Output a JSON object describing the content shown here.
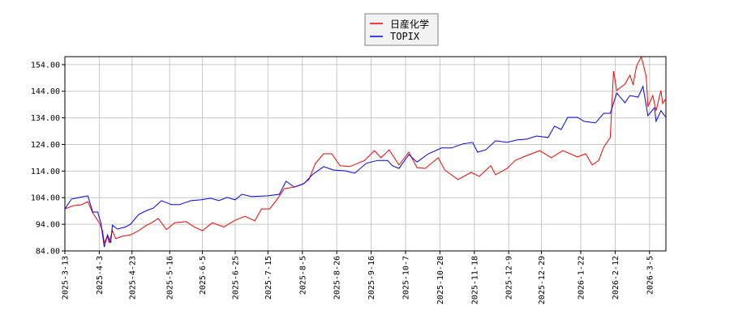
{
  "chart_data": {
    "type": "line",
    "title": "",
    "xlabel": "",
    "ylabel": "",
    "ylim": [
      84,
      157
    ],
    "xlim": [
      "2025-03-13",
      "2026-03-15"
    ],
    "grid": true,
    "legend_placement": "top-center",
    "y_ticks": [
      "84.00",
      "94.00",
      "104.00",
      "114.00",
      "124.00",
      "134.00",
      "144.00",
      "154.00"
    ],
    "x_ticks": [
      "2025-3-13",
      "2025-4-3",
      "2025-4-23",
      "2025-5-16",
      "2025-6-5",
      "2025-6-25",
      "2025-7-15",
      "2025-8-5",
      "2025-8-26",
      "2025-9-16",
      "2025-10-7",
      "2025-10-28",
      "2025-11-18",
      "2025-12-9",
      "2025-12-29",
      "2026-1-22",
      "2026-2-12",
      "2026-3-5"
    ],
    "series": [
      {
        "name": "日産化学",
        "color": "#ff0000",
        "points": [
          [
            "2025-03-13",
            99.8
          ],
          [
            "2025-03-18",
            101
          ],
          [
            "2025-03-23",
            101.3
          ],
          [
            "2025-03-27",
            102.5
          ],
          [
            "2025-03-30",
            98.3
          ],
          [
            "2025-04-03",
            94.6
          ],
          [
            "2025-04-05",
            91.6
          ],
          [
            "2025-04-06",
            87
          ],
          [
            "2025-04-08",
            89.5
          ],
          [
            "2025-04-09",
            87
          ],
          [
            "2025-04-11",
            91.6
          ],
          [
            "2025-04-13",
            88.6
          ],
          [
            "2025-04-17",
            89.5
          ],
          [
            "2025-04-22",
            90
          ],
          [
            "2025-04-27",
            91.6
          ],
          [
            "2025-05-02",
            93.7
          ],
          [
            "2025-05-05",
            94.6
          ],
          [
            "2025-05-09",
            96.2
          ],
          [
            "2025-05-14",
            92
          ],
          [
            "2025-05-19",
            94.6
          ],
          [
            "2025-05-26",
            95
          ],
          [
            "2025-05-31",
            93
          ],
          [
            "2025-06-05",
            91.6
          ],
          [
            "2025-06-11",
            94.6
          ],
          [
            "2025-06-18",
            93
          ],
          [
            "2025-06-25",
            95.6
          ],
          [
            "2025-07-01",
            97
          ],
          [
            "2025-07-07",
            95.3
          ],
          [
            "2025-07-11",
            99.8
          ],
          [
            "2025-07-16",
            99.8
          ],
          [
            "2025-07-20",
            102.9
          ],
          [
            "2025-07-25",
            107.4
          ],
          [
            "2025-07-31",
            108
          ],
          [
            "2025-08-05",
            109
          ],
          [
            "2025-08-09",
            110.8
          ],
          [
            "2025-08-13",
            116.9
          ],
          [
            "2025-08-18",
            120.5
          ],
          [
            "2025-08-23",
            120.5
          ],
          [
            "2025-08-28",
            116
          ],
          [
            "2025-09-03",
            115.7
          ],
          [
            "2025-09-12",
            118
          ],
          [
            "2025-09-18",
            121.7
          ],
          [
            "2025-09-22",
            119
          ],
          [
            "2025-09-27",
            122
          ],
          [
            "2025-10-03",
            116.3
          ],
          [
            "2025-10-09",
            121.1
          ],
          [
            "2025-10-14",
            115.3
          ],
          [
            "2025-10-19",
            115
          ],
          [
            "2025-10-27",
            119
          ],
          [
            "2025-10-31",
            114.4
          ],
          [
            "2025-11-08",
            110.8
          ],
          [
            "2025-11-16",
            113.5
          ],
          [
            "2025-11-21",
            112
          ],
          [
            "2025-11-28",
            116
          ],
          [
            "2025-12-01",
            112.6
          ],
          [
            "2025-12-08",
            115
          ],
          [
            "2025-12-13",
            118
          ],
          [
            "2025-12-19",
            119.6
          ],
          [
            "2025-12-28",
            121.7
          ],
          [
            "2026-01-04",
            119
          ],
          [
            "2026-01-11",
            121.7
          ],
          [
            "2026-01-20",
            119.3
          ],
          [
            "2026-01-25",
            120.5
          ],
          [
            "2026-01-29",
            116.3
          ],
          [
            "2026-02-02",
            118
          ],
          [
            "2026-02-05",
            123
          ],
          [
            "2026-02-09",
            126.6
          ],
          [
            "2026-02-11",
            151.6
          ],
          [
            "2026-02-13",
            144.3
          ],
          [
            "2026-02-18",
            146.7
          ],
          [
            "2026-02-21",
            150
          ],
          [
            "2026-02-23",
            146.4
          ],
          [
            "2026-02-25",
            153.4
          ],
          [
            "2026-02-28",
            157
          ],
          [
            "2026-03-03",
            149.4
          ],
          [
            "2026-03-04",
            138.2
          ],
          [
            "2026-03-07",
            142.4
          ],
          [
            "2026-03-09",
            136.7
          ],
          [
            "2026-03-12",
            144.3
          ],
          [
            "2026-03-13",
            139.4
          ],
          [
            "2026-03-15",
            141.2
          ]
        ]
      },
      {
        "name": "TOPIX",
        "color": "#0000ff",
        "points": [
          [
            "2025-03-13",
            99.8
          ],
          [
            "2025-03-17",
            103.5
          ],
          [
            "2025-03-22",
            104.1
          ],
          [
            "2025-03-27",
            104.7
          ],
          [
            "2025-03-30",
            98.6
          ],
          [
            "2025-04-02",
            98.6
          ],
          [
            "2025-04-04",
            94.6
          ],
          [
            "2025-04-06",
            85.5
          ],
          [
            "2025-04-08",
            90
          ],
          [
            "2025-04-10",
            87
          ],
          [
            "2025-04-11",
            93.7
          ],
          [
            "2025-04-14",
            92.2
          ],
          [
            "2025-04-19",
            93
          ],
          [
            "2025-04-22",
            94
          ],
          [
            "2025-04-27",
            97.7
          ],
          [
            "2025-05-02",
            99.2
          ],
          [
            "2025-05-06",
            100.1
          ],
          [
            "2025-05-11",
            102.9
          ],
          [
            "2025-05-17",
            101.4
          ],
          [
            "2025-05-22",
            101.4
          ],
          [
            "2025-05-29",
            102.9
          ],
          [
            "2025-06-04",
            103.2
          ],
          [
            "2025-06-10",
            103.8
          ],
          [
            "2025-06-15",
            102.9
          ],
          [
            "2025-06-20",
            104.1
          ],
          [
            "2025-06-25",
            103.2
          ],
          [
            "2025-06-29",
            105.3
          ],
          [
            "2025-07-05",
            104.4
          ],
          [
            "2025-07-15",
            104.7
          ],
          [
            "2025-07-22",
            105.3
          ],
          [
            "2025-07-26",
            110.2
          ],
          [
            "2025-07-31",
            108
          ],
          [
            "2025-08-06",
            109.3
          ],
          [
            "2025-08-11",
            112.6
          ],
          [
            "2025-08-18",
            115.7
          ],
          [
            "2025-08-24",
            114.4
          ],
          [
            "2025-08-31",
            114.1
          ],
          [
            "2025-09-06",
            113.2
          ],
          [
            "2025-09-13",
            116.9
          ],
          [
            "2025-09-20",
            118
          ],
          [
            "2025-09-26",
            118
          ],
          [
            "2025-09-29",
            116
          ],
          [
            "2025-10-03",
            115
          ],
          [
            "2025-10-09",
            120.2
          ],
          [
            "2025-10-14",
            117.4
          ],
          [
            "2025-10-21",
            120.5
          ],
          [
            "2025-10-29",
            122.7
          ],
          [
            "2025-11-04",
            122.7
          ],
          [
            "2025-11-11",
            124.2
          ],
          [
            "2025-11-17",
            124.8
          ],
          [
            "2025-11-20",
            121.1
          ],
          [
            "2025-11-25",
            122
          ],
          [
            "2025-12-01",
            125.4
          ],
          [
            "2025-12-08",
            124.8
          ],
          [
            "2025-12-14",
            125.7
          ],
          [
            "2025-12-20",
            126
          ],
          [
            "2025-12-26",
            127.2
          ],
          [
            "2026-01-02",
            126.6
          ],
          [
            "2026-01-06",
            130.9
          ],
          [
            "2026-01-10",
            129.6
          ],
          [
            "2026-01-14",
            134.2
          ],
          [
            "2026-01-20",
            134.2
          ],
          [
            "2026-01-24",
            132.7
          ],
          [
            "2026-01-31",
            132.1
          ],
          [
            "2026-02-05",
            135.7
          ],
          [
            "2026-02-09",
            135.7
          ],
          [
            "2026-02-13",
            143.3
          ],
          [
            "2026-02-18",
            139.7
          ],
          [
            "2026-02-21",
            142.4
          ],
          [
            "2026-02-26",
            141.8
          ],
          [
            "2026-03-01",
            145.8
          ],
          [
            "2026-03-04",
            134.8
          ],
          [
            "2026-03-08",
            137.8
          ],
          [
            "2026-03-09",
            132.7
          ],
          [
            "2026-03-12",
            136.7
          ],
          [
            "2026-03-15",
            134.2
          ]
        ]
      }
    ]
  }
}
